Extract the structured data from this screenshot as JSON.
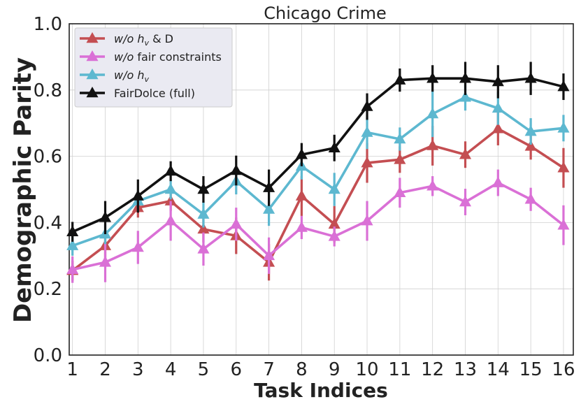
{
  "chart_data": {
    "type": "line",
    "title": "Chicago Crime",
    "xlabel": "Task Indices",
    "ylabel": "Demographic Parity",
    "x": [
      1,
      2,
      3,
      4,
      5,
      6,
      7,
      8,
      9,
      10,
      11,
      12,
      13,
      14,
      15,
      16
    ],
    "xlim": [
      0.9,
      16.3
    ],
    "ylim": [
      0.0,
      1.0
    ],
    "yticks": [
      "0.0",
      "0.2",
      "0.4",
      "0.6",
      "0.8",
      "1.0"
    ],
    "grid": true,
    "legend_position": "top-left",
    "series": [
      {
        "name": "w/o h_v & D",
        "legend_label": {
          "prefix": "w/o h",
          "sub": "v",
          "suffix": " & D"
        },
        "color": "#c44e52",
        "values": [
          0.255,
          0.33,
          0.445,
          0.465,
          0.38,
          0.36,
          0.28,
          0.48,
          0.395,
          0.58,
          0.59,
          0.632,
          0.605,
          0.683,
          0.63,
          0.565
        ],
        "errors": [
          0.03,
          0.04,
          0.03,
          0.03,
          0.04,
          0.055,
          0.055,
          0.06,
          0.055,
          0.06,
          0.04,
          0.06,
          0.04,
          0.05,
          0.04,
          0.06
        ]
      },
      {
        "name": "w/o fair constraints",
        "legend_label": {
          "prefix": "w/o",
          "sub": "",
          "suffix": " fair constraints"
        },
        "color": "#da70d6",
        "values": [
          0.258,
          0.28,
          0.325,
          0.405,
          0.32,
          0.395,
          0.3,
          0.385,
          0.358,
          0.405,
          0.49,
          0.51,
          0.462,
          0.52,
          0.47,
          0.392
        ],
        "errors": [
          0.04,
          0.06,
          0.05,
          0.06,
          0.05,
          0.05,
          0.055,
          0.035,
          0.03,
          0.06,
          0.045,
          0.03,
          0.04,
          0.04,
          0.035,
          0.06
        ]
      },
      {
        "name": "w/o h_v",
        "legend_label": {
          "prefix": "w/o h",
          "sub": "v",
          "suffix": ""
        },
        "color": "#5db8d0",
        "values": [
          0.33,
          0.365,
          0.465,
          0.5,
          0.425,
          0.525,
          0.44,
          0.57,
          0.5,
          0.672,
          0.652,
          0.728,
          0.778,
          0.745,
          0.675,
          0.685
        ],
        "errors": [
          0.03,
          0.03,
          0.03,
          0.03,
          0.04,
          0.04,
          0.05,
          0.04,
          0.05,
          0.05,
          0.035,
          0.07,
          0.04,
          0.05,
          0.04,
          0.04
        ]
      },
      {
        "name": "FairDolce (full)",
        "legend_label": {
          "prefix": "FairDolce (full)",
          "sub": "",
          "suffix": ""
        },
        "color": "#111111",
        "values": [
          0.372,
          0.415,
          0.48,
          0.555,
          0.5,
          0.557,
          0.505,
          0.605,
          0.625,
          0.75,
          0.83,
          0.835,
          0.835,
          0.825,
          0.835,
          0.81
        ],
        "errors": [
          0.03,
          0.05,
          0.05,
          0.03,
          0.04,
          0.045,
          0.055,
          0.035,
          0.04,
          0.04,
          0.035,
          0.04,
          0.05,
          0.05,
          0.05,
          0.04
        ]
      }
    ]
  }
}
